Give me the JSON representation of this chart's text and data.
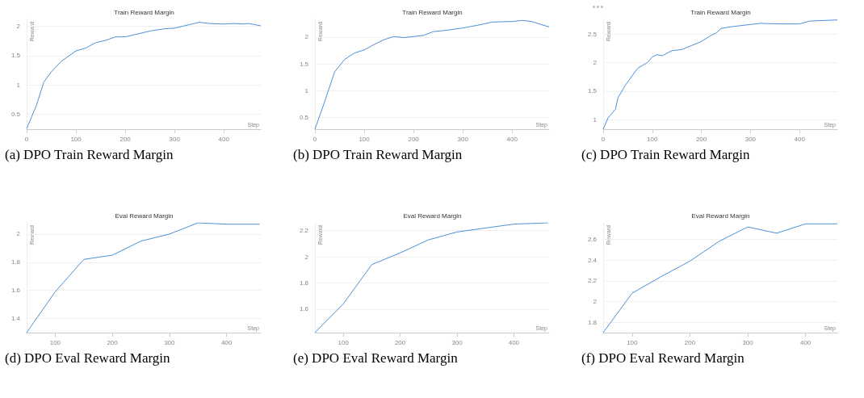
{
  "chart_data": [
    {
      "type": "line",
      "title": "Train Reward Margin",
      "xlabel": "Step",
      "ylabel": "Reward",
      "annotations": [
        "(a) DPO Train Reward Margin"
      ],
      "grid": "y",
      "marker": "none",
      "xlim": [
        0,
        475
      ],
      "xticks": [
        0,
        100,
        200,
        300,
        400
      ],
      "ylim": [
        0.24,
        2.12
      ],
      "yticks": [
        0.5,
        1,
        1.5,
        2
      ],
      "series": [
        {
          "color": "#4a90d9",
          "x": [
            0,
            20,
            35,
            50,
            70,
            90,
            100,
            120,
            140,
            160,
            180,
            200,
            220,
            250,
            280,
            300,
            330,
            350,
            370,
            400,
            420,
            440,
            450,
            475
          ],
          "values": [
            0.25,
            0.65,
            1.05,
            1.22,
            1.4,
            1.52,
            1.58,
            1.63,
            1.72,
            1.76,
            1.82,
            1.82,
            1.86,
            1.92,
            1.96,
            1.97,
            2.03,
            2.07,
            2.05,
            2.04,
            2.05,
            2.04,
            2.05,
            2.01
          ]
        }
      ]
    },
    {
      "type": "line",
      "title": "Train Reward Margin",
      "xlabel": "Step",
      "ylabel": "Reward",
      "annotations": [
        "(b) DPO Train Reward Margin"
      ],
      "grid": "y",
      "marker": "none",
      "xlim": [
        0,
        475
      ],
      "xticks": [
        0,
        100,
        200,
        300,
        400
      ],
      "ylim": [
        0.28,
        2.33
      ],
      "yticks": [
        0.5,
        1,
        1.5,
        2
      ],
      "series": [
        {
          "color": "#4a90d9",
          "x": [
            0,
            20,
            40,
            60,
            80,
            100,
            120,
            140,
            160,
            180,
            200,
            220,
            240,
            270,
            300,
            330,
            360,
            400,
            420,
            440,
            460,
            475
          ],
          "values": [
            0.28,
            0.8,
            1.35,
            1.58,
            1.7,
            1.76,
            1.86,
            1.95,
            2.01,
            1.99,
            2.01,
            2.03,
            2.1,
            2.13,
            2.17,
            2.22,
            2.28,
            2.29,
            2.31,
            2.29,
            2.23,
            2.19
          ]
        }
      ]
    },
    {
      "type": "line",
      "title": "Train Reward Margin",
      "xlabel": "Step",
      "ylabel": "Reward",
      "annotations": [
        "(c) DPO Train Reward Margin"
      ],
      "grid": "y",
      "marker": "none",
      "xlim": [
        0,
        477
      ],
      "xticks": [
        0,
        100,
        200,
        300,
        400
      ],
      "ylim": [
        0.83,
        2.76
      ],
      "yticks": [
        1,
        1.5,
        2,
        2.5
      ],
      "series": [
        {
          "color": "#4a90d9",
          "x": [
            0,
            10,
            25,
            30,
            45,
            55,
            70,
            90,
            100,
            110,
            120,
            140,
            160,
            180,
            200,
            220,
            230,
            240,
            260,
            300,
            320,
            360,
            400,
            420,
            477
          ],
          "values": [
            0.83,
            1.03,
            1.18,
            1.38,
            1.6,
            1.72,
            1.9,
            2.0,
            2.1,
            2.14,
            2.12,
            2.21,
            2.23,
            2.3,
            2.37,
            2.48,
            2.52,
            2.6,
            2.63,
            2.67,
            2.69,
            2.68,
            2.68,
            2.73,
            2.75
          ]
        }
      ]
    },
    {
      "type": "line",
      "title": "Eval Reward Margin",
      "xlabel": "Step",
      "ylabel": "Reward",
      "annotations": [
        "(d) DPO Eval Reward Margin"
      ],
      "grid": "y",
      "marker": "none",
      "xlim": [
        50,
        460
      ],
      "xticks": [
        100,
        200,
        300,
        400
      ],
      "ylim": [
        1.3,
        2.08
      ],
      "yticks": [
        1.4,
        1.6,
        1.8,
        2
      ],
      "series": [
        {
          "color": "#4a90d9",
          "x": [
            50,
            100,
            150,
            200,
            250,
            300,
            350,
            400,
            458
          ],
          "values": [
            1.3,
            1.59,
            1.82,
            1.85,
            1.95,
            2.0,
            2.08,
            2.07,
            2.07
          ]
        }
      ]
    },
    {
      "type": "line",
      "title": "Eval Reward Margin",
      "xlabel": "Step",
      "ylabel": "Reward",
      "annotations": [
        "(e) DPO Eval Reward Margin"
      ],
      "grid": "y",
      "marker": "none",
      "xlim": [
        50,
        462
      ],
      "xticks": [
        100,
        200,
        300,
        400
      ],
      "ylim": [
        1.42,
        2.26
      ],
      "yticks": [
        1.6,
        1.8,
        2,
        2.2
      ],
      "series": [
        {
          "color": "#4a90d9",
          "x": [
            50,
            100,
            150,
            200,
            250,
            300,
            350,
            400,
            460
          ],
          "values": [
            1.42,
            1.64,
            1.94,
            2.03,
            2.13,
            2.19,
            2.22,
            2.25,
            2.26
          ]
        }
      ]
    },
    {
      "type": "line",
      "title": "Eval Reward Margin",
      "xlabel": "Step",
      "ylabel": "Reward",
      "annotations": [
        "(f) DPO Eval Reward Margin"
      ],
      "grid": "y",
      "marker": "none",
      "xlim": [
        50,
        455
      ],
      "xticks": [
        100,
        200,
        300,
        400
      ],
      "ylim": [
        1.7,
        2.76
      ],
      "yticks": [
        1.8,
        2,
        2.2,
        2.4,
        2.6
      ],
      "series": [
        {
          "color": "#4a90d9",
          "x": [
            50,
            100,
            150,
            200,
            250,
            300,
            350,
            400,
            455
          ],
          "values": [
            1.7,
            2.08,
            2.24,
            2.39,
            2.58,
            2.72,
            2.66,
            2.75,
            2.75
          ]
        }
      ]
    }
  ]
}
